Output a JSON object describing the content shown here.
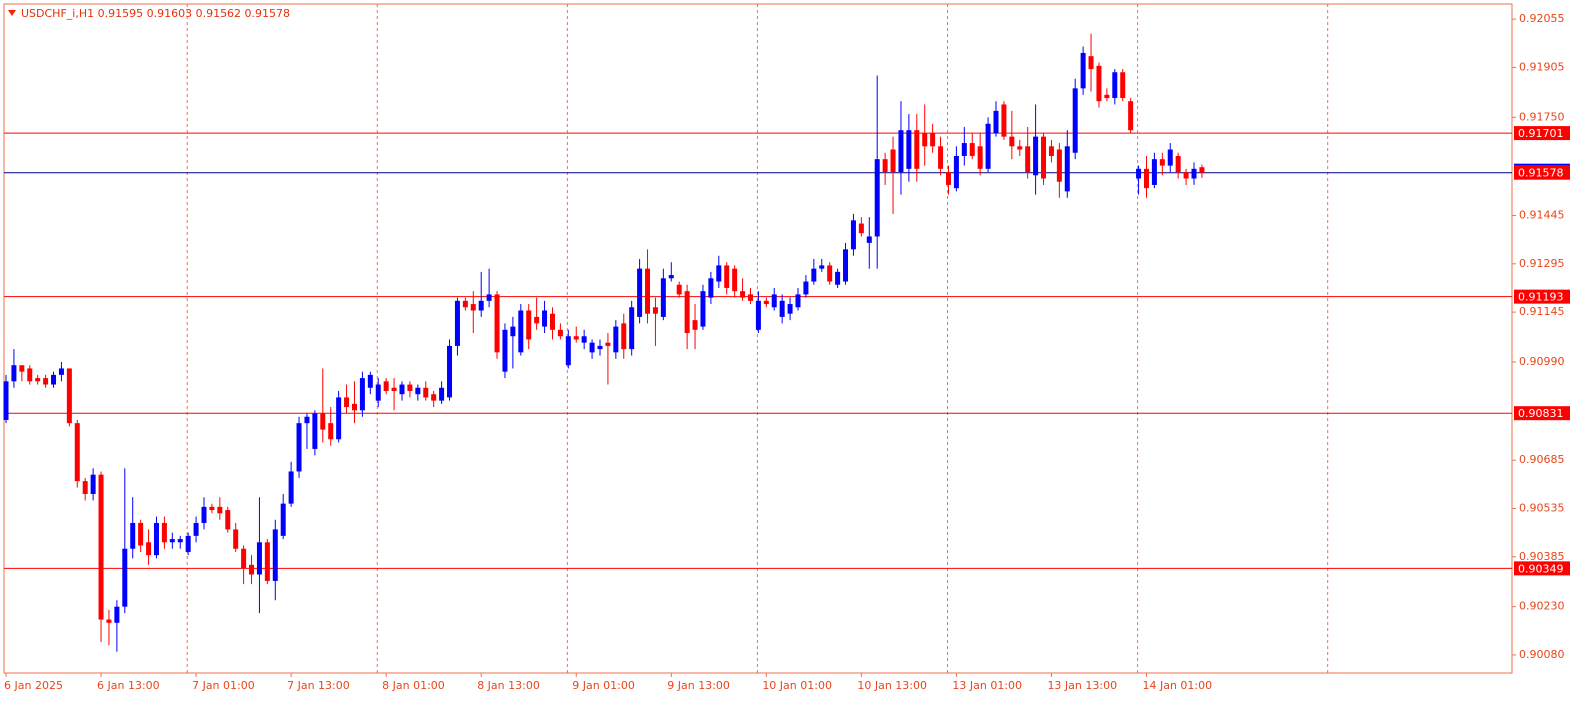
{
  "chart_data": {
    "type": "candlestick",
    "title": "USDCHF_i,H1  0.91595 0.91603 0.91562 0.91578",
    "categories": [
      "6 Jan 2025",
      null,
      null,
      null,
      null,
      null,
      null,
      null,
      null,
      null,
      null,
      null,
      "6 Jan 13:00",
      null,
      null,
      null,
      null,
      null,
      null,
      null,
      null,
      null,
      null,
      null,
      "7 Jan 01:00",
      null,
      null,
      null,
      null,
      null,
      null,
      null,
      null,
      null,
      null,
      null,
      "7 Jan 13:00",
      null,
      null,
      null,
      null,
      null,
      null,
      null,
      null,
      null,
      null,
      null,
      "8 Jan 01:00",
      null,
      null,
      null,
      null,
      null,
      null,
      null,
      null,
      null,
      null,
      null,
      "8 Jan 13:00",
      null,
      null,
      null,
      null,
      null,
      null,
      null,
      null,
      null,
      null,
      null,
      "9 Jan 01:00",
      null,
      null,
      null,
      null,
      null,
      null,
      null,
      null,
      null,
      null,
      null,
      "9 Jan 13:00",
      null,
      null,
      null,
      null,
      null,
      null,
      null,
      null,
      null,
      null,
      null,
      "10 Jan 01:00",
      null,
      null,
      null,
      null,
      null,
      null,
      null,
      null,
      null,
      null,
      null,
      "10 Jan 13:00",
      null,
      null,
      null,
      null,
      null,
      null,
      null,
      null,
      null,
      null,
      null,
      "13 Jan 01:00",
      null,
      null,
      null,
      null,
      null,
      null,
      null,
      null,
      null,
      null,
      null,
      "13 Jan 13:00",
      null,
      null,
      null,
      null,
      null,
      null,
      null,
      null,
      null,
      null,
      null,
      "14 Jan 01:00",
      null,
      null,
      null,
      null,
      null,
      null,
      null
    ],
    "open": [
      0.9081,
      0.9093,
      0.9098,
      0.9097,
      0.9094,
      0.9094,
      0.9092,
      0.9095,
      0.9097,
      0.908,
      0.9062,
      0.9058,
      0.9064,
      0.9019,
      0.9018,
      0.9023,
      0.9041,
      0.9049,
      0.9043,
      0.9039,
      0.9049,
      0.9043,
      0.9043,
      0.904,
      0.9045,
      0.9049,
      0.9054,
      0.9054,
      0.9053,
      0.9047,
      0.9041,
      0.9036,
      0.9033,
      0.9043,
      0.9031,
      0.9045,
      0.9055,
      0.9065,
      0.908,
      0.9072,
      0.9083,
      0.908,
      0.9075,
      0.9088,
      0.9086,
      0.9084,
      0.9091,
      0.9087,
      0.9093,
      0.9091,
      0.9089,
      0.9092,
      0.9089,
      0.9091,
      0.9089,
      0.9087,
      0.9088,
      0.9104,
      0.9118,
      0.9117,
      0.9115,
      0.9118,
      0.912,
      0.9096,
      0.9107,
      0.9102,
      0.9115,
      0.9113,
      0.911,
      0.9114,
      0.9109,
      0.9098,
      0.9107,
      0.9105,
      0.9102,
      0.9103,
      0.9105,
      0.9102,
      0.9111,
      0.9103,
      0.9113,
      0.9128,
      0.9116,
      0.9113,
      0.9125,
      0.9123,
      0.9121,
      0.9112,
      0.911,
      0.9119,
      0.9124,
      0.9129,
      0.9128,
      0.9121,
      0.912,
      0.9109,
      0.9118,
      0.9116,
      0.9113,
      0.9114,
      0.9116,
      0.912,
      0.9124,
      0.9128,
      0.9129,
      0.9123,
      0.9124,
      0.9134,
      0.9142,
      0.9136,
      0.9138,
      0.9162,
      0.9165,
      0.9158,
      0.9159,
      0.9171,
      0.917,
      0.917,
      0.9166,
      0.9158,
      0.9153,
      0.9163,
      0.9167,
      0.9166,
      0.9159,
      0.917,
      0.9179,
      0.9169,
      0.9166,
      0.9166,
      0.9157,
      0.9169,
      0.9166,
      0.9165,
      0.9152,
      0.9164,
      0.9184,
      0.9194,
      0.9191,
      0.9182,
      0.9181,
      0.9189,
      0.918,
      0.9156,
      0.9159,
      0.9154,
      0.9162,
      0.916,
      0.9163,
      0.9158,
      0.9156,
      0.91595
    ],
    "high": [
      0.9095,
      0.9103,
      0.9098,
      0.9098,
      0.9095,
      0.9095,
      0.9096,
      0.9099,
      0.9097,
      0.9081,
      0.9063,
      0.9066,
      0.9065,
      0.9022,
      0.9025,
      0.9066,
      0.9057,
      0.905,
      0.9047,
      0.9051,
      0.9051,
      0.9046,
      0.9045,
      0.9046,
      0.9051,
      0.9057,
      0.9055,
      0.9057,
      0.9054,
      0.9049,
      0.9042,
      0.9039,
      0.9057,
      0.9044,
      0.905,
      0.9058,
      0.9068,
      0.9082,
      0.9083,
      0.9084,
      0.9097,
      0.9085,
      0.909,
      0.9092,
      0.9093,
      0.9096,
      0.9096,
      0.9094,
      0.9094,
      0.9094,
      0.9093,
      0.9093,
      0.9092,
      0.9093,
      0.909,
      0.9093,
      0.9106,
      0.9119,
      0.9119,
      0.9121,
      0.9127,
      0.9128,
      0.9121,
      0.9111,
      0.9113,
      0.9117,
      0.9117,
      0.9119,
      0.9118,
      0.9116,
      0.9111,
      0.9109,
      0.911,
      0.9109,
      0.9106,
      0.9106,
      0.9108,
      0.9112,
      0.9114,
      0.9118,
      0.9131,
      0.9134,
      0.9119,
      0.9128,
      0.913,
      0.9124,
      0.9123,
      0.9117,
      0.9123,
      0.9127,
      0.9132,
      0.913,
      0.9129,
      0.9125,
      0.9122,
      0.9121,
      0.9119,
      0.9122,
      0.912,
      0.9119,
      0.9122,
      0.9126,
      0.9131,
      0.9131,
      0.913,
      0.9128,
      0.9136,
      0.9145,
      0.9144,
      0.9144,
      0.9188,
      0.9164,
      0.9169,
      0.918,
      0.9176,
      0.9176,
      0.9179,
      0.9173,
      0.9169,
      0.916,
      0.9166,
      0.9172,
      0.917,
      0.917,
      0.9175,
      0.918,
      0.918,
      0.9177,
      0.9168,
      0.9172,
      0.9179,
      0.917,
      0.9168,
      0.9167,
      0.9171,
      0.9187,
      0.9197,
      0.9201,
      0.9192,
      0.9184,
      0.919,
      0.919,
      0.9181,
      0.916,
      0.9163,
      0.9164,
      0.9164,
      0.9167,
      0.9164,
      0.9159,
      0.9161,
      0.91603
    ],
    "low": [
      0.908,
      0.9091,
      0.9093,
      0.9092,
      0.9092,
      0.9091,
      0.9091,
      0.9093,
      0.9079,
      0.906,
      0.9056,
      0.9056,
      0.9012,
      0.9011,
      0.9009,
      0.9021,
      0.9038,
      0.904,
      0.9036,
      0.9038,
      0.9041,
      0.9041,
      0.9041,
      0.9039,
      0.9043,
      0.9047,
      0.9052,
      0.905,
      0.9046,
      0.904,
      0.903,
      0.903,
      0.9021,
      0.903,
      0.9025,
      0.9044,
      0.9054,
      0.9063,
      0.9072,
      0.907,
      0.9074,
      0.9073,
      0.9074,
      0.9083,
      0.908,
      0.9082,
      0.9089,
      0.9085,
      0.9089,
      0.9084,
      0.9087,
      0.9088,
      0.9087,
      0.9087,
      0.9085,
      0.9086,
      0.9087,
      0.9101,
      0.9115,
      0.9108,
      0.9113,
      0.9116,
      0.91,
      0.9094,
      0.9097,
      0.9101,
      0.9103,
      0.9109,
      0.9108,
      0.9106,
      0.9106,
      0.9097,
      0.9105,
      0.9103,
      0.91,
      0.9101,
      0.9092,
      0.91,
      0.91,
      0.9101,
      0.9111,
      0.9111,
      0.9104,
      0.9112,
      0.9124,
      0.9119,
      0.9103,
      0.9103,
      0.9109,
      0.9117,
      0.9122,
      0.912,
      0.9119,
      0.9118,
      0.9117,
      0.9108,
      0.9116,
      0.9115,
      0.9111,
      0.9112,
      0.9115,
      0.9119,
      0.9123,
      0.9127,
      0.9123,
      0.9122,
      0.9123,
      0.9132,
      0.9138,
      0.9128,
      0.9128,
      0.9154,
      0.9145,
      0.9151,
      0.9155,
      0.9155,
      0.916,
      0.9164,
      0.9157,
      0.9151,
      0.9152,
      0.916,
      0.9162,
      0.9157,
      0.9158,
      0.9169,
      0.9168,
      0.9162,
      0.9163,
      0.9156,
      0.9151,
      0.9154,
      0.9161,
      0.915,
      0.915,
      0.9162,
      0.9182,
      0.9183,
      0.9178,
      0.918,
      0.9179,
      0.918,
      0.917,
      0.9151,
      0.915,
      0.9153,
      0.9157,
      0.9158,
      0.9156,
      0.9154,
      0.9154,
      0.91562
    ],
    "close": [
      0.9093,
      0.9098,
      0.9096,
      0.9093,
      0.9093,
      0.9092,
      0.9095,
      0.9097,
      0.908,
      0.9062,
      0.9058,
      0.9064,
      0.9019,
      0.9018,
      0.9023,
      0.9041,
      0.9049,
      0.9042,
      0.9039,
      0.9049,
      0.9043,
      0.9044,
      0.9044,
      0.9045,
      0.9049,
      0.9054,
      0.9053,
      0.9052,
      0.9047,
      0.9041,
      0.9035,
      0.9033,
      0.9043,
      0.9031,
      0.9047,
      0.9055,
      0.9065,
      0.908,
      0.9082,
      0.9083,
      0.9078,
      0.9075,
      0.9088,
      0.9085,
      0.9084,
      0.9094,
      0.9095,
      0.9092,
      0.909,
      0.909,
      0.9092,
      0.909,
      0.9091,
      0.9088,
      0.9087,
      0.9091,
      0.9104,
      0.9118,
      0.9116,
      0.9115,
      0.9118,
      0.912,
      0.9102,
      0.9109,
      0.911,
      0.9115,
      0.9106,
      0.9111,
      0.9115,
      0.9109,
      0.9107,
      0.9107,
      0.9106,
      0.9107,
      0.9105,
      0.9104,
      0.9104,
      0.911,
      0.9103,
      0.9116,
      0.9128,
      0.9114,
      0.9114,
      0.9125,
      0.9126,
      0.912,
      0.9108,
      0.9109,
      0.9121,
      0.9125,
      0.9129,
      0.9122,
      0.9121,
      0.9119,
      0.9118,
      0.9118,
      0.9117,
      0.912,
      0.9118,
      0.9117,
      0.912,
      0.9124,
      0.9128,
      0.9129,
      0.9124,
      0.9127,
      0.9134,
      0.9143,
      0.9139,
      0.9138,
      0.9162,
      0.9158,
      0.9158,
      0.9171,
      0.9171,
      0.9159,
      0.9166,
      0.9166,
      0.9159,
      0.9154,
      0.9163,
      0.9167,
      0.9163,
      0.9159,
      0.9173,
      0.9177,
      0.9169,
      0.9166,
      0.9165,
      0.9158,
      0.9169,
      0.9156,
      0.9163,
      0.9155,
      0.9166,
      0.9184,
      0.9195,
      0.919,
      0.918,
      0.9181,
      0.9189,
      0.9181,
      0.9171,
      0.9159,
      0.9153,
      0.9162,
      0.916,
      0.9165,
      0.9158,
      0.9156,
      0.9159,
      0.91578
    ],
    "up_color": "#0000ff",
    "down_color": "#ff0000",
    "ylim": [
      0.90024,
      0.92102
    ],
    "yticks": [
      0.92055,
      0.91905,
      {
        "value": 0.9175,
        "label": "0.91750"
      },
      0.91445,
      0.91295,
      0.91145,
      {
        "value": 0.9099,
        "label": "0.90990"
      },
      0.90685,
      0.90535,
      0.90385,
      {
        "value": 0.9023,
        "label": "0.90230"
      },
      {
        "value": 0.9008,
        "label": "0.90080"
      }
    ],
    "hlines": [
      0.91701,
      0.91193,
      0.90831,
      0.90349
    ],
    "hline_color": "#ff0000",
    "last_price": 0.91578,
    "last_price_color": "#000080"
  }
}
